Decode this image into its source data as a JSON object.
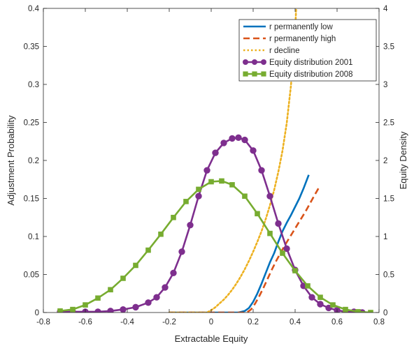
{
  "chart_data": {
    "type": "line",
    "title": "",
    "xlabel": "Extractable Equity",
    "ylabel_left": "Adjustment Probability",
    "ylabel_right": "Equity Density",
    "xlim": [
      -0.8,
      0.8
    ],
    "ylim_left": [
      0,
      0.4
    ],
    "ylim_right": [
      0,
      4
    ],
    "xticks": [
      "-0.8",
      "-0.6",
      "-0.4",
      "-0.2",
      "0",
      "0.2",
      "0.4",
      "0.6",
      "0.8"
    ],
    "yticks_left": [
      "0",
      "0.05",
      "0.1",
      "0.15",
      "0.2",
      "0.25",
      "0.3",
      "0.35",
      "0.4"
    ],
    "yticks_right": [
      "0",
      "0.5",
      "1",
      "1.5",
      "2",
      "2.5",
      "3",
      "3.5",
      "4"
    ],
    "grid": false,
    "legend_position": "top-right",
    "series": [
      {
        "name": "r permanently low",
        "axis": "left",
        "style": "solid",
        "color": "#0072BD",
        "x": [
          -0.2,
          0.13,
          0.16,
          0.18,
          0.2,
          0.22,
          0.24,
          0.26,
          0.28,
          0.3,
          0.32,
          0.34,
          0.36,
          0.38,
          0.4,
          0.42,
          0.44,
          0.465
        ],
        "y": [
          0,
          0,
          0.002,
          0.006,
          0.014,
          0.025,
          0.038,
          0.052,
          0.066,
          0.078,
          0.093,
          0.107,
          0.118,
          0.128,
          0.139,
          0.15,
          0.163,
          0.181
        ]
      },
      {
        "name": "r permanently high",
        "axis": "left",
        "style": "dashed",
        "color": "#D95319",
        "x": [
          -0.2,
          0.17,
          0.19,
          0.21,
          0.23,
          0.25,
          0.27,
          0.29,
          0.31,
          0.33,
          0.35,
          0.37,
          0.39,
          0.41,
          0.43,
          0.45,
          0.47,
          0.49,
          0.515
        ],
        "y": [
          0,
          0,
          0.004,
          0.012,
          0.022,
          0.033,
          0.045,
          0.057,
          0.068,
          0.078,
          0.088,
          0.097,
          0.106,
          0.115,
          0.124,
          0.133,
          0.143,
          0.153,
          0.165
        ]
      },
      {
        "name": "r decline",
        "axis": "left",
        "style": "dotted",
        "color": "#EDB120",
        "x": [
          -0.2,
          -0.02,
          0.0,
          0.02,
          0.04,
          0.06,
          0.08,
          0.1,
          0.12,
          0.14,
          0.16,
          0.18,
          0.2,
          0.22,
          0.24,
          0.26,
          0.28,
          0.3,
          0.32,
          0.34,
          0.36,
          0.38,
          0.4,
          0.405
        ],
        "y": [
          0,
          0,
          0.003,
          0.007,
          0.012,
          0.017,
          0.023,
          0.03,
          0.038,
          0.047,
          0.057,
          0.068,
          0.08,
          0.093,
          0.107,
          0.123,
          0.141,
          0.161,
          0.185,
          0.213,
          0.249,
          0.298,
          0.37,
          0.4
        ]
      },
      {
        "name": "Equity distribution 2001",
        "axis": "right",
        "style": "solid-circle-markers",
        "color": "#7E2F8E",
        "x": [
          -0.72,
          -0.66,
          -0.6,
          -0.54,
          -0.48,
          -0.42,
          -0.36,
          -0.3,
          -0.26,
          -0.22,
          -0.18,
          -0.14,
          -0.1,
          -0.06,
          -0.02,
          0.02,
          0.06,
          0.1,
          0.13,
          0.16,
          0.2,
          0.24,
          0.28,
          0.32,
          0.36,
          0.4,
          0.44,
          0.48,
          0.52,
          0.56,
          0.6,
          0.64,
          0.68,
          0.72
        ],
        "y": [
          0.01,
          0.01,
          0.01,
          0.01,
          0.02,
          0.04,
          0.07,
          0.13,
          0.2,
          0.33,
          0.52,
          0.8,
          1.15,
          1.53,
          1.87,
          2.1,
          2.23,
          2.29,
          2.3,
          2.27,
          2.13,
          1.87,
          1.53,
          1.17,
          0.84,
          0.56,
          0.35,
          0.2,
          0.11,
          0.06,
          0.03,
          0.01,
          0.01,
          0.0
        ]
      },
      {
        "name": "Equity distribution 2008",
        "axis": "right",
        "style": "solid-square-markers",
        "color": "#77AC30",
        "x": [
          -0.72,
          -0.66,
          -0.6,
          -0.54,
          -0.48,
          -0.42,
          -0.36,
          -0.3,
          -0.24,
          -0.18,
          -0.12,
          -0.06,
          0.0,
          0.05,
          0.1,
          0.16,
          0.22,
          0.28,
          0.34,
          0.4,
          0.46,
          0.52,
          0.58,
          0.64,
          0.7,
          0.76
        ],
        "y": [
          0.02,
          0.04,
          0.1,
          0.19,
          0.3,
          0.45,
          0.62,
          0.82,
          1.03,
          1.25,
          1.46,
          1.62,
          1.72,
          1.73,
          1.68,
          1.53,
          1.3,
          1.04,
          0.78,
          0.55,
          0.35,
          0.2,
          0.1,
          0.04,
          0.01,
          0.0
        ]
      }
    ]
  }
}
